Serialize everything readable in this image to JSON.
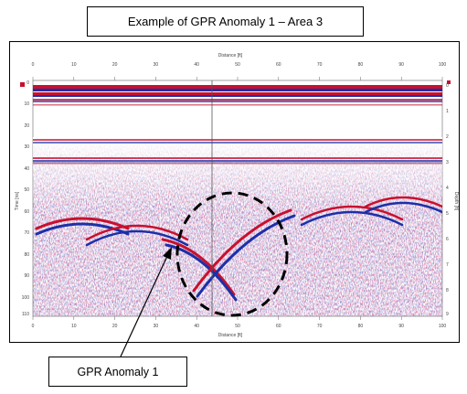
{
  "title": "Example of GPR Anomaly 1 – Area 3",
  "callout": "GPR Anomaly 1",
  "radargram": {
    "top_axis_label": "Distance [ft]",
    "bottom_axis_label": "Distance [ft]",
    "left_axis_label": "Time [ns]",
    "right_axis_label": "Depth [ft]",
    "x_ticks": [
      "0",
      "10",
      "20",
      "30",
      "40",
      "50",
      "60",
      "70",
      "80",
      "90",
      "100"
    ],
    "y_ticks": [
      "0",
      "10",
      "20",
      "30",
      "40",
      "50",
      "60",
      "70",
      "80",
      "90",
      "100",
      "110"
    ],
    "depth_ticks": [
      "0",
      "1",
      "2",
      "3",
      "4",
      "5",
      "6",
      "7",
      "8",
      "9"
    ],
    "colors": {
      "positive": "#c8102e",
      "negative": "#1c2fa8",
      "background": "#ffffff"
    }
  }
}
